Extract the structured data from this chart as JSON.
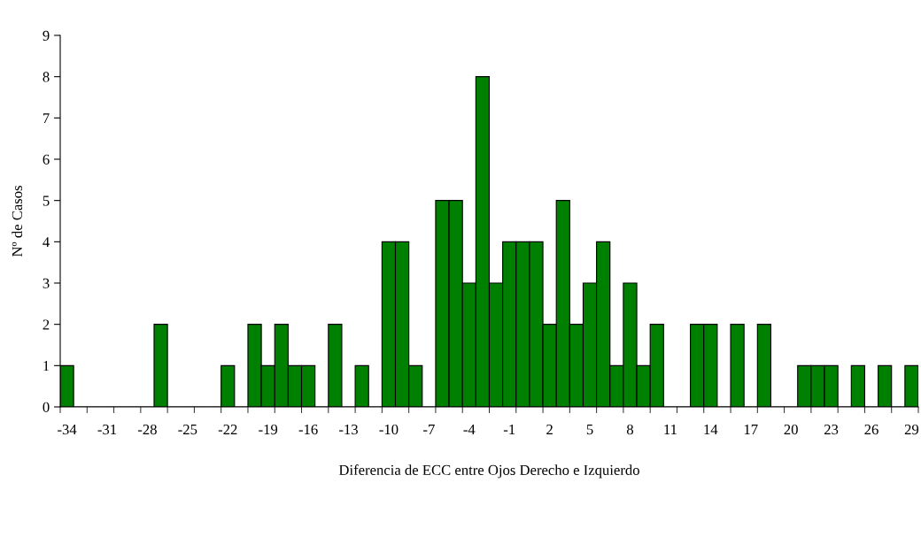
{
  "chart_data": {
    "type": "bar",
    "xlabel": "Diferencia de ECC entre Ojos Derecho e Izquierdo",
    "ylabel": "Nº de Casos",
    "categories": [
      "-34",
      null,
      null,
      "-31",
      null,
      null,
      "-28",
      null,
      null,
      "-25",
      null,
      null,
      "-22",
      null,
      null,
      "-19",
      null,
      null,
      "-16",
      null,
      null,
      "-13",
      null,
      null,
      "-10",
      null,
      null,
      "-7",
      null,
      null,
      "-4",
      null,
      null,
      "-1",
      null,
      null,
      "2",
      null,
      null,
      "5",
      null,
      null,
      "8",
      null,
      null,
      "11",
      null,
      null,
      "14",
      null,
      null,
      "17",
      null,
      null,
      "20",
      null,
      null,
      "23",
      null,
      null,
      "26",
      null,
      null,
      "29"
    ],
    "values": [
      1,
      0,
      0,
      0,
      0,
      0,
      0,
      2,
      0,
      0,
      0,
      0,
      1,
      0,
      2,
      1,
      2,
      1,
      1,
      0,
      2,
      0,
      1,
      0,
      4,
      4,
      1,
      0,
      5,
      5,
      3,
      8,
      3,
      4,
      4,
      4,
      2,
      5,
      2,
      3,
      4,
      1,
      3,
      1,
      2,
      0,
      0,
      2,
      2,
      0,
      2,
      0,
      2,
      0,
      0,
      1,
      1,
      1,
      0,
      1,
      0,
      1,
      0,
      1
    ],
    "color": "#008000",
    "ylim": [
      0,
      9
    ],
    "yticks": [
      0,
      1,
      2,
      3,
      4,
      5,
      6,
      7,
      8,
      9
    ],
    "grid": false,
    "legend": false
  }
}
